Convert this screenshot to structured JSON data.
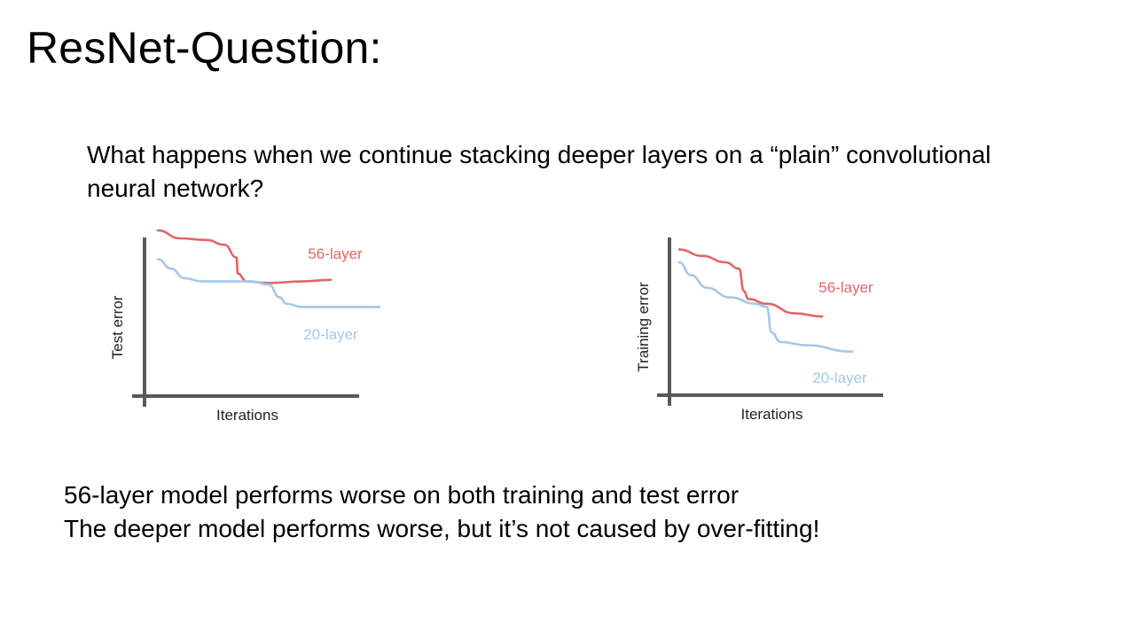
{
  "slide": {
    "title": "ResNet-Question:",
    "question_lines": [
      "What happens when we continue stacking deeper layers on a “plain” convolutional",
      "neural network?"
    ],
    "conclusion_lines": [
      "56-layer model performs worse on both training and test error",
      "The deeper model performs worse, but it’s not caused by over-fitting!"
    ]
  },
  "colors": {
    "series_56": "#e06666",
    "series_20": "#a4c8e8",
    "axis": "#595959"
  },
  "chart_data": [
    {
      "type": "line",
      "title": "",
      "xlabel": "Iterations",
      "ylabel": "Test error",
      "ticks": false,
      "series": [
        {
          "name": "56-layer",
          "color": "#e06666",
          "x": [
            0.0,
            0.1,
            0.22,
            0.3,
            0.355,
            0.36,
            0.4,
            0.5,
            0.65,
            0.78
          ],
          "y": [
            1.0,
            0.95,
            0.94,
            0.91,
            0.83,
            0.73,
            0.68,
            0.67,
            0.68,
            0.69
          ]
        },
        {
          "name": "20-layer",
          "color": "#a4c8e8",
          "x": [
            0.0,
            0.06,
            0.12,
            0.2,
            0.3,
            0.42,
            0.5,
            0.55,
            0.58,
            0.65,
            0.75,
            0.9,
            1.0
          ],
          "y": [
            0.82,
            0.76,
            0.7,
            0.68,
            0.68,
            0.68,
            0.66,
            0.58,
            0.54,
            0.52,
            0.52,
            0.52,
            0.52
          ]
        }
      ]
    },
    {
      "type": "line",
      "title": "",
      "xlabel": "Iterations",
      "ylabel": "Training error",
      "ticks": false,
      "series": [
        {
          "name": "56-layer",
          "color": "#e06666",
          "x": [
            0.0,
            0.1,
            0.2,
            0.26,
            0.28,
            0.3,
            0.38,
            0.5,
            0.62
          ],
          "y": [
            0.88,
            0.84,
            0.8,
            0.76,
            0.62,
            0.57,
            0.54,
            0.48,
            0.46
          ]
        },
        {
          "name": "20-layer",
          "color": "#a4c8e8",
          "x": [
            0.0,
            0.05,
            0.12,
            0.22,
            0.33,
            0.38,
            0.4,
            0.44,
            0.55,
            0.75
          ],
          "y": [
            0.8,
            0.72,
            0.64,
            0.58,
            0.54,
            0.52,
            0.36,
            0.3,
            0.28,
            0.24
          ]
        }
      ]
    }
  ]
}
